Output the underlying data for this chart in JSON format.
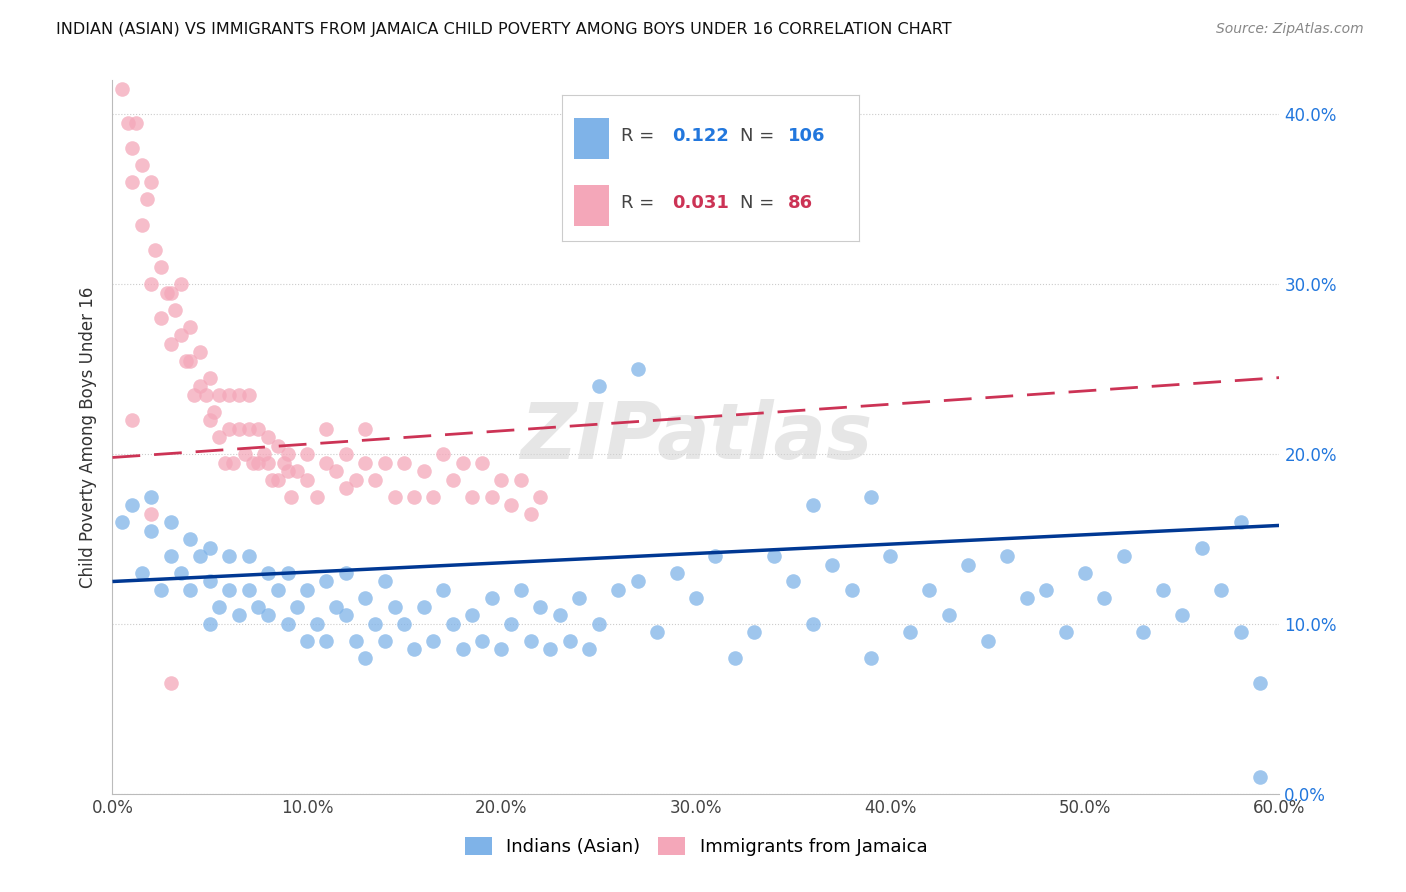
{
  "title": "INDIAN (ASIAN) VS IMMIGRANTS FROM JAMAICA CHILD POVERTY AMONG BOYS UNDER 16 CORRELATION CHART",
  "source": "Source: ZipAtlas.com",
  "ylabel": "Child Poverty Among Boys Under 16",
  "legend1_label": "Indians (Asian)",
  "legend2_label": "Immigrants from Jamaica",
  "r1": "0.122",
  "n1": "106",
  "r2": "0.031",
  "n2": "86",
  "blue_color": "#7FB3E8",
  "pink_color": "#F4A7B9",
  "line_blue": "#003893",
  "line_pink": "#CC3355",
  "watermark": "ZIPatlas",
  "xlim": [
    0.0,
    0.6
  ],
  "ylim": [
    0.0,
    0.42
  ],
  "blue_line_y0": 0.125,
  "blue_line_y1": 0.158,
  "pink_line_y0": 0.198,
  "pink_line_y1": 0.245,
  "indian_x": [
    0.005,
    0.01,
    0.015,
    0.02,
    0.02,
    0.025,
    0.03,
    0.03,
    0.035,
    0.04,
    0.04,
    0.045,
    0.05,
    0.05,
    0.05,
    0.055,
    0.06,
    0.06,
    0.065,
    0.07,
    0.07,
    0.075,
    0.08,
    0.08,
    0.085,
    0.09,
    0.09,
    0.095,
    0.1,
    0.1,
    0.105,
    0.11,
    0.11,
    0.115,
    0.12,
    0.12,
    0.125,
    0.13,
    0.13,
    0.135,
    0.14,
    0.14,
    0.145,
    0.15,
    0.155,
    0.16,
    0.165,
    0.17,
    0.175,
    0.18,
    0.185,
    0.19,
    0.195,
    0.2,
    0.205,
    0.21,
    0.215,
    0.22,
    0.225,
    0.23,
    0.235,
    0.24,
    0.245,
    0.25,
    0.26,
    0.27,
    0.28,
    0.29,
    0.3,
    0.31,
    0.32,
    0.33,
    0.34,
    0.35,
    0.36,
    0.37,
    0.38,
    0.39,
    0.4,
    0.41,
    0.42,
    0.43,
    0.44,
    0.45,
    0.46,
    0.47,
    0.48,
    0.49,
    0.5,
    0.51,
    0.52,
    0.53,
    0.54,
    0.55,
    0.56,
    0.57,
    0.58,
    0.59,
    0.25,
    0.27,
    0.3,
    0.33,
    0.36,
    0.39,
    0.58,
    0.59
  ],
  "indian_y": [
    0.16,
    0.17,
    0.13,
    0.155,
    0.175,
    0.12,
    0.14,
    0.16,
    0.13,
    0.15,
    0.12,
    0.14,
    0.1,
    0.125,
    0.145,
    0.11,
    0.12,
    0.14,
    0.105,
    0.12,
    0.14,
    0.11,
    0.13,
    0.105,
    0.12,
    0.1,
    0.13,
    0.11,
    0.09,
    0.12,
    0.1,
    0.125,
    0.09,
    0.11,
    0.105,
    0.13,
    0.09,
    0.115,
    0.08,
    0.1,
    0.125,
    0.09,
    0.11,
    0.1,
    0.085,
    0.11,
    0.09,
    0.12,
    0.1,
    0.085,
    0.105,
    0.09,
    0.115,
    0.085,
    0.1,
    0.12,
    0.09,
    0.11,
    0.085,
    0.105,
    0.09,
    0.115,
    0.085,
    0.1,
    0.12,
    0.125,
    0.095,
    0.13,
    0.115,
    0.14,
    0.08,
    0.095,
    0.14,
    0.125,
    0.1,
    0.135,
    0.12,
    0.08,
    0.14,
    0.095,
    0.12,
    0.105,
    0.135,
    0.09,
    0.14,
    0.115,
    0.12,
    0.095,
    0.13,
    0.115,
    0.14,
    0.095,
    0.12,
    0.105,
    0.145,
    0.12,
    0.095,
    0.065,
    0.24,
    0.25,
    0.37,
    0.375,
    0.17,
    0.175,
    0.16,
    0.01
  ],
  "jamaica_x": [
    0.005,
    0.008,
    0.01,
    0.01,
    0.012,
    0.015,
    0.015,
    0.018,
    0.02,
    0.02,
    0.022,
    0.025,
    0.025,
    0.028,
    0.03,
    0.03,
    0.032,
    0.035,
    0.035,
    0.038,
    0.04,
    0.04,
    0.042,
    0.045,
    0.045,
    0.048,
    0.05,
    0.05,
    0.052,
    0.055,
    0.055,
    0.058,
    0.06,
    0.06,
    0.062,
    0.065,
    0.065,
    0.068,
    0.07,
    0.07,
    0.072,
    0.075,
    0.075,
    0.078,
    0.08,
    0.08,
    0.082,
    0.085,
    0.085,
    0.088,
    0.09,
    0.09,
    0.092,
    0.095,
    0.1,
    0.1,
    0.105,
    0.11,
    0.11,
    0.115,
    0.12,
    0.12,
    0.125,
    0.13,
    0.13,
    0.135,
    0.14,
    0.145,
    0.15,
    0.155,
    0.16,
    0.165,
    0.17,
    0.175,
    0.18,
    0.185,
    0.19,
    0.195,
    0.2,
    0.205,
    0.21,
    0.215,
    0.22,
    0.01,
    0.02,
    0.03
  ],
  "jamaica_y": [
    0.415,
    0.395,
    0.38,
    0.36,
    0.395,
    0.37,
    0.335,
    0.35,
    0.36,
    0.3,
    0.32,
    0.31,
    0.28,
    0.295,
    0.295,
    0.265,
    0.285,
    0.3,
    0.27,
    0.255,
    0.275,
    0.255,
    0.235,
    0.24,
    0.26,
    0.235,
    0.22,
    0.245,
    0.225,
    0.21,
    0.235,
    0.195,
    0.215,
    0.235,
    0.195,
    0.215,
    0.235,
    0.2,
    0.215,
    0.235,
    0.195,
    0.215,
    0.195,
    0.2,
    0.21,
    0.195,
    0.185,
    0.205,
    0.185,
    0.195,
    0.2,
    0.19,
    0.175,
    0.19,
    0.185,
    0.2,
    0.175,
    0.195,
    0.215,
    0.19,
    0.18,
    0.2,
    0.185,
    0.195,
    0.215,
    0.185,
    0.195,
    0.175,
    0.195,
    0.175,
    0.19,
    0.175,
    0.2,
    0.185,
    0.195,
    0.175,
    0.195,
    0.175,
    0.185,
    0.17,
    0.185,
    0.165,
    0.175,
    0.22,
    0.165,
    0.065
  ]
}
